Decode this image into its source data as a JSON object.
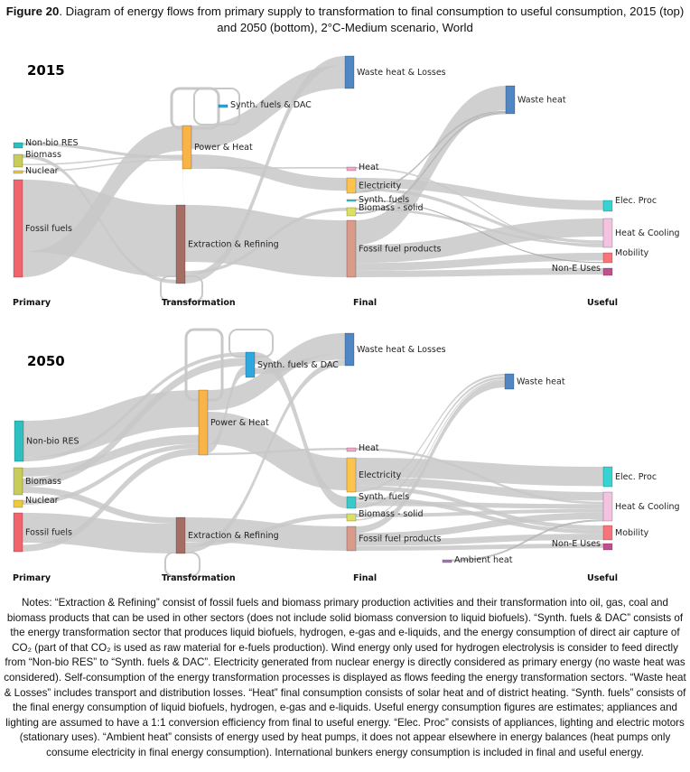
{
  "caption": {
    "figure_label": "Figure 20",
    "text": ". Diagram of energy flows from primary supply to transformation to final consumption to useful consumption, 2015 (top) and 2050 (bottom), 2°C-Medium scenario, World"
  },
  "stages": [
    "Primary",
    "Transformation",
    "Final",
    "Useful"
  ],
  "colors": {
    "link": "#c8c8c8",
    "link_dark": "#9a9a9a",
    "fossil_fuels": "#f0646e",
    "non_bio_res": "#2ebfbf",
    "biomass": "#c8cc5a",
    "nuclear": "#f0c83c",
    "power_heat": "#f9b347",
    "extraction": "#a56e64",
    "synth_dac": "#2fa8e0",
    "waste": "#4f86c3",
    "heat": "#f0a8c8",
    "electricity": "#fcc44c",
    "synth_fuels": "#3cc8c8",
    "biomass_solid": "#dce064",
    "fossil_products": "#d99a8a",
    "elec_proc": "#36d3d3",
    "heat_cooling": "#f3c3df",
    "mobility": "#f7747a",
    "non_e": "#c1518e",
    "ambient": "#a07ea8"
  },
  "chart_data": [
    {
      "type": "sankey",
      "title": "2015",
      "nodes": [
        {
          "id": "nonbio",
          "label": "Non-bio RES",
          "stage": 0,
          "color": "non_bio_res"
        },
        {
          "id": "biomass",
          "label": "Biomass",
          "stage": 0,
          "color": "biomass"
        },
        {
          "id": "nuclear",
          "label": "Nuclear",
          "stage": 0,
          "color": "nuclear"
        },
        {
          "id": "fossil",
          "label": "Fossil fuels",
          "stage": 0,
          "color": "fossil_fuels"
        },
        {
          "id": "synthdac",
          "label": "Synth. fuels & DAC",
          "stage": 1,
          "color": "synth_dac"
        },
        {
          "id": "power",
          "label": "Power & Heat",
          "stage": 1,
          "color": "power_heat"
        },
        {
          "id": "extract",
          "label": "Extraction & Refining",
          "stage": 1,
          "color": "extraction"
        },
        {
          "id": "wasteloss",
          "label": "Waste heat & Losses",
          "stage": 2,
          "color": "waste"
        },
        {
          "id": "heat",
          "label": "Heat",
          "stage": 2,
          "color": "heat"
        },
        {
          "id": "elec",
          "label": "Electricity",
          "stage": 2,
          "color": "electricity"
        },
        {
          "id": "synthf",
          "label": "Synth. fuels",
          "stage": 2,
          "color": "synth_fuels"
        },
        {
          "id": "biosolid",
          "label": "Biomass - solid",
          "stage": 2,
          "color": "biomass_solid"
        },
        {
          "id": "fossilprod",
          "label": "Fossil fuel products",
          "stage": 2,
          "color": "fossil_products"
        },
        {
          "id": "waste",
          "label": "Waste heat",
          "stage": 2.5,
          "color": "waste"
        },
        {
          "id": "elecproc",
          "label": "Elec. Proc",
          "stage": 3,
          "color": "elec_proc"
        },
        {
          "id": "heatcool",
          "label": "Heat & Cooling",
          "stage": 3,
          "color": "heat_cooling"
        },
        {
          "id": "mobility",
          "label": "Mobility",
          "stage": 3,
          "color": "mobility"
        },
        {
          "id": "none",
          "label": "Non-E Uses",
          "stage": 3,
          "color": "non_e"
        }
      ],
      "links": [
        {
          "source": "fossil",
          "target": "extract",
          "value": 60
        },
        {
          "source": "fossil",
          "target": "power",
          "value": 21
        },
        {
          "source": "biomass",
          "target": "extract",
          "value": 3
        },
        {
          "source": "biomass",
          "target": "power",
          "value": 1
        },
        {
          "source": "nonbio",
          "target": "power",
          "value": 2
        },
        {
          "source": "nuclear",
          "target": "power",
          "value": 1
        },
        {
          "source": "extract",
          "target": "fossilprod",
          "value": 44
        },
        {
          "source": "extract",
          "target": "power",
          "value": 6
        },
        {
          "source": "extract",
          "target": "biosolid",
          "value": 2.5
        },
        {
          "source": "extract",
          "target": "wasteloss",
          "value": 7
        },
        {
          "source": "power",
          "target": "wasteloss",
          "value": 18
        },
        {
          "source": "power",
          "target": "elec",
          "value": 8
        },
        {
          "source": "power",
          "target": "heat",
          "value": 1
        },
        {
          "source": "fossilprod",
          "target": "waste",
          "value": 19
        },
        {
          "source": "fossilprod",
          "target": "heatcool",
          "value": 14
        },
        {
          "source": "fossilprod",
          "target": "mobility",
          "value": 6
        },
        {
          "source": "fossilprod",
          "target": "none",
          "value": 5
        },
        {
          "source": "elec",
          "target": "elecproc",
          "value": 5
        },
        {
          "source": "elec",
          "target": "heatcool",
          "value": 2
        },
        {
          "source": "elec",
          "target": "waste",
          "value": 1
        },
        {
          "source": "biosolid",
          "target": "heatcool",
          "value": 1.5
        },
        {
          "source": "biosolid",
          "target": "waste",
          "value": 1
        },
        {
          "source": "heat",
          "target": "heatcool",
          "value": 1
        },
        {
          "source": "synthf",
          "target": "mobility",
          "value": 0.3
        }
      ]
    },
    {
      "type": "sankey",
      "title": "2050",
      "nodes": [
        {
          "id": "nonbio",
          "label": "Non-bio RES",
          "stage": 0,
          "color": "non_bio_res"
        },
        {
          "id": "biomass",
          "label": "Biomass",
          "stage": 0,
          "color": "biomass"
        },
        {
          "id": "nuclear",
          "label": "Nuclear",
          "stage": 0,
          "color": "nuclear"
        },
        {
          "id": "fossil",
          "label": "Fossil fuels",
          "stage": 0,
          "color": "fossil_fuels"
        },
        {
          "id": "synthdac",
          "label": "Synth. fuels & DAC",
          "stage": 1.5,
          "color": "synth_dac"
        },
        {
          "id": "power",
          "label": "Power & Heat",
          "stage": 1,
          "color": "power_heat"
        },
        {
          "id": "extract",
          "label": "Extraction & Refining",
          "stage": 1,
          "color": "extraction"
        },
        {
          "id": "wasteloss",
          "label": "Waste heat & Losses",
          "stage": 2,
          "color": "waste"
        },
        {
          "id": "heat",
          "label": "Heat",
          "stage": 2,
          "color": "heat"
        },
        {
          "id": "elec",
          "label": "Electricity",
          "stage": 2,
          "color": "electricity"
        },
        {
          "id": "synthf",
          "label": "Synth. fuels",
          "stage": 2,
          "color": "synth_fuels"
        },
        {
          "id": "biosolid",
          "label": "Biomass - solid",
          "stage": 2,
          "color": "biomass_solid"
        },
        {
          "id": "fossilprod",
          "label": "Fossil fuel products",
          "stage": 2,
          "color": "fossil_products"
        },
        {
          "id": "waste",
          "label": "Waste heat",
          "stage": 2.5,
          "color": "waste"
        },
        {
          "id": "ambient",
          "label": "Ambient heat",
          "stage": 2.5,
          "color": "ambient"
        },
        {
          "id": "elecproc",
          "label": "Elec. Proc",
          "stage": 3,
          "color": "elec_proc"
        },
        {
          "id": "heatcool",
          "label": "Heat & Cooling",
          "stage": 3,
          "color": "heat_cooling"
        },
        {
          "id": "mobility",
          "label": "Mobility",
          "stage": 3,
          "color": "mobility"
        },
        {
          "id": "none",
          "label": "Non-E Uses",
          "stage": 3,
          "color": "non_e"
        }
      ],
      "links": [
        {
          "source": "nonbio",
          "target": "power",
          "value": 20
        },
        {
          "source": "nonbio",
          "target": "synthdac",
          "value": 2
        },
        {
          "source": "biomass",
          "target": "power",
          "value": 4
        },
        {
          "source": "biomass",
          "target": "synthdac",
          "value": 3
        },
        {
          "source": "biomass",
          "target": "extract",
          "value": 3
        },
        {
          "source": "nuclear",
          "target": "power",
          "value": 2
        },
        {
          "source": "fossil",
          "target": "extract",
          "value": 14
        },
        {
          "source": "fossil",
          "target": "power",
          "value": 3
        },
        {
          "source": "power",
          "target": "wasteloss",
          "value": 10
        },
        {
          "source": "power",
          "target": "elec",
          "value": 15
        },
        {
          "source": "power",
          "target": "synthdac",
          "value": 4
        },
        {
          "source": "power",
          "target": "heat",
          "value": 1
        },
        {
          "source": "synthdac",
          "target": "synthf",
          "value": 5
        },
        {
          "source": "synthdac",
          "target": "wasteloss",
          "value": 3
        },
        {
          "source": "extract",
          "target": "fossilprod",
          "value": 11
        },
        {
          "source": "extract",
          "target": "biosolid",
          "value": 2
        },
        {
          "source": "extract",
          "target": "wasteloss",
          "value": 3
        },
        {
          "source": "elec",
          "target": "elecproc",
          "value": 9
        },
        {
          "source": "elec",
          "target": "heatcool",
          "value": 4
        },
        {
          "source": "elec",
          "target": "mobility",
          "value": 2
        },
        {
          "source": "elec",
          "target": "waste",
          "value": 1
        },
        {
          "source": "heat",
          "target": "heatcool",
          "value": 1
        },
        {
          "source": "synthf",
          "target": "mobility",
          "value": 2
        },
        {
          "source": "synthf",
          "target": "heatcool",
          "value": 2
        },
        {
          "source": "synthf",
          "target": "waste",
          "value": 1
        },
        {
          "source": "biosolid",
          "target": "heatcool",
          "value": 1.5
        },
        {
          "source": "biosolid",
          "target": "waste",
          "value": 0.5
        },
        {
          "source": "fossilprod",
          "target": "waste",
          "value": 3
        },
        {
          "source": "fossilprod",
          "target": "heatcool",
          "value": 3
        },
        {
          "source": "fossilprod",
          "target": "mobility",
          "value": 3
        },
        {
          "source": "fossilprod",
          "target": "none",
          "value": 2
        },
        {
          "source": "ambient",
          "target": "heatcool",
          "value": 0.5
        }
      ]
    }
  ],
  "notes": "Notes: “Extraction & Refining” consist of fossil fuels and biomass primary production activities and their transformation into oil, gas, coal and biomass products that can be used in other sectors (does not include solid biomass conversion to liquid biofuels). “Synth. fuels & DAC” consists of the energy transformation sector that produces liquid biofuels, hydrogen, e-gas and e-liquids, and the energy consumption of direct air capture of CO₂ (part of that CO₂ is used as raw material for e-fuels production). Wind energy only used for hydrogen electrolysis is consider to feed directly from “Non-bio RES” to “Synth. fuels & DAC”. Electricity generated from nuclear energy is directly considered as primary energy (no waste heat was considered). Self-consumption of the energy transformation processes is displayed as flows feeding the energy transformation sectors. “Waste heat & Losses” includes transport and distribution losses. “Heat” final consumption consists of solar heat and of district heating. “Synth. fuels” consists of the final energy consumption of liquid biofuels, hydrogen, e-gas and e-liquids. Useful energy consumption figures are estimates; appliances and lighting are assumed to have a 1:1 conversion efficiency from final to useful energy. “Elec. Proc” consists of appliances, lighting and electric motors (stationary uses). “Ambient heat” consists of energy used by heat pumps, it does not appear elsewhere in energy balances (heat pumps only consume electricity in final energy consumption). International bunkers energy consumption is included in final and useful energy."
}
